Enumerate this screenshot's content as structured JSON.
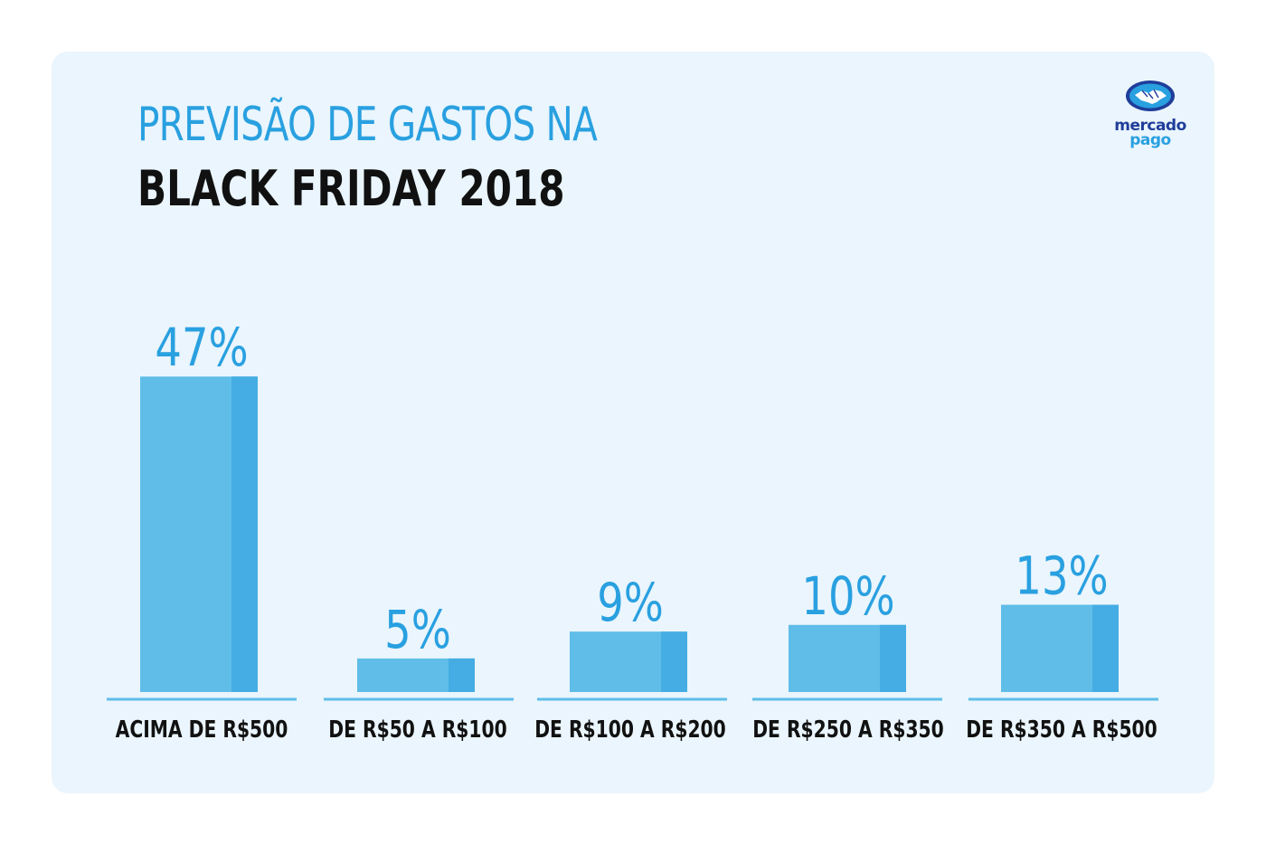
{
  "header": {
    "title_line1": "PREVISÃO DE GASTOS NA",
    "title_line2": "BLACK FRIDAY 2018"
  },
  "logo": {
    "line1": "mercado",
    "line2": "pago",
    "icon": "handshake-icon"
  },
  "colors": {
    "background": "#eaf5fd",
    "bar_face": "#5fbde8",
    "bar_side": "#45ade3",
    "accent": "#29a0e0",
    "title_dark": "#111111",
    "brand_dark": "#1f3d9a"
  },
  "chart_data": {
    "type": "bar",
    "title": "PREVISÃO DE GASTOS NA BLACK FRIDAY 2018",
    "categories": [
      "ACIMA DE R$500",
      "DE R$50 A R$100",
      "DE R$100 A R$200",
      "DE R$250 A R$350",
      "DE R$350 A R$500"
    ],
    "values": [
      47,
      5,
      9,
      10,
      13
    ],
    "value_labels": [
      "47%",
      "5%",
      "9%",
      "10%",
      "13%"
    ],
    "unit": "%",
    "xlabel": "",
    "ylabel": "",
    "grid": false,
    "legend": "none"
  }
}
